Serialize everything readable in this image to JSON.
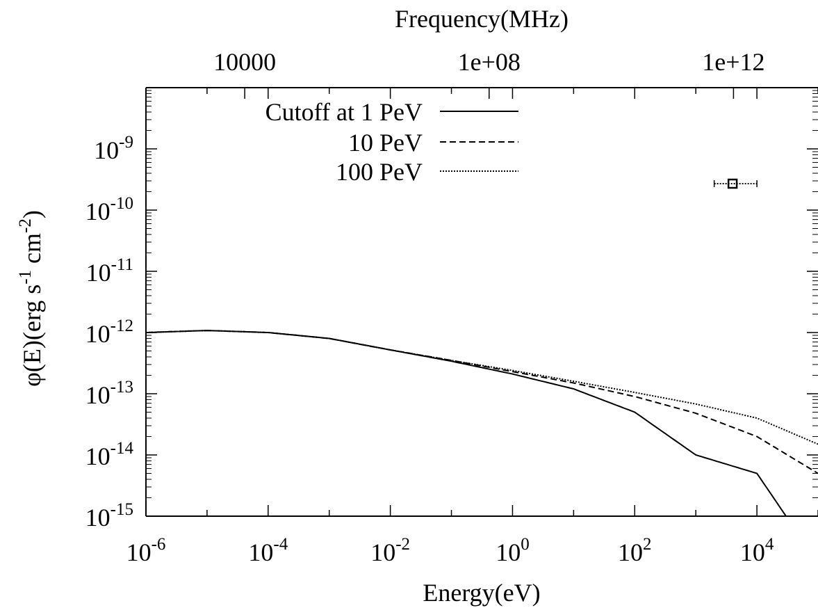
{
  "chart_data": {
    "type": "line",
    "title": "",
    "xlabel": "Energy(eV)",
    "ylabel": "φ(E)(erg s-1 cm-2)",
    "ylabel_parts": {
      "main": "φ(E)(erg s",
      "exp1": "-1",
      "mid": " cm",
      "exp2": "-2",
      "end": ")"
    },
    "x2label": "Frequency(MHz)",
    "x_scale": "log",
    "y_scale": "log",
    "xlim": [
      1e-06,
      100000
    ],
    "ylim": [
      1e-15,
      1e-08
    ],
    "x_ticks": [
      {
        "value": 1e-06,
        "base": "10",
        "exp": "-6"
      },
      {
        "value": 0.0001,
        "base": "10",
        "exp": "-4"
      },
      {
        "value": 0.01,
        "base": "10",
        "exp": "-2"
      },
      {
        "value": 1,
        "base": "10",
        "exp": "0"
      },
      {
        "value": 100,
        "base": "10",
        "exp": "2"
      },
      {
        "value": 10000,
        "base": "10",
        "exp": "4"
      }
    ],
    "y_ticks": [
      {
        "value": 1e-15,
        "base": "10",
        "exp": "-15"
      },
      {
        "value": 1e-14,
        "base": "10",
        "exp": "-14"
      },
      {
        "value": 1e-13,
        "base": "10",
        "exp": "-13"
      },
      {
        "value": 1e-12,
        "base": "10",
        "exp": "-12"
      },
      {
        "value": 1e-11,
        "base": "10",
        "exp": "-11"
      },
      {
        "value": 1e-10,
        "base": "10",
        "exp": "-10"
      },
      {
        "value": 1e-09,
        "base": "10",
        "exp": "-9"
      }
    ],
    "x2_ticks": [
      {
        "label": "10000",
        "energy_eV": 4.14e-05
      },
      {
        "label": "1e+08",
        "energy_eV": 0.414
      },
      {
        "label": "1e+12",
        "energy_eV": 4140
      }
    ],
    "legend_position": "top-left",
    "grid": false,
    "series": [
      {
        "name": "Cutoff at 1 PeV",
        "style": "solid",
        "points": [
          [
            1e-06,
            1e-12
          ],
          [
            1e-05,
            1.08e-12
          ],
          [
            0.0001,
            1e-12
          ],
          [
            0.001,
            8e-13
          ],
          [
            0.01,
            5.2e-13
          ],
          [
            0.1,
            3.4e-13
          ],
          [
            1,
            2.1e-13
          ],
          [
            10,
            1.2e-13
          ],
          [
            100,
            5e-14
          ],
          [
            1000,
            1e-14
          ],
          [
            10000,
            5e-15
          ],
          [
            30000,
            1e-15
          ]
        ]
      },
      {
        "name": "10 PeV",
        "style": "dashed",
        "points": [
          [
            1e-06,
            1e-12
          ],
          [
            1e-05,
            1.08e-12
          ],
          [
            0.0001,
            1e-12
          ],
          [
            0.001,
            8e-13
          ],
          [
            0.01,
            5.2e-13
          ],
          [
            0.1,
            3.5e-13
          ],
          [
            1,
            2.3e-13
          ],
          [
            10,
            1.5e-13
          ],
          [
            100,
            9e-14
          ],
          [
            1000,
            4.8e-14
          ],
          [
            10000,
            2e-14
          ],
          [
            100000,
            5e-15
          ]
        ]
      },
      {
        "name": "100 PeV",
        "style": "dotted",
        "points": [
          [
            1e-06,
            1e-12
          ],
          [
            1e-05,
            1.08e-12
          ],
          [
            0.0001,
            1e-12
          ],
          [
            0.001,
            8e-13
          ],
          [
            0.01,
            5.2e-13
          ],
          [
            0.1,
            3.5e-13
          ],
          [
            1,
            2.4e-13
          ],
          [
            10,
            1.6e-13
          ],
          [
            100,
            1.05e-13
          ],
          [
            1000,
            6.8e-14
          ],
          [
            10000,
            4e-14
          ],
          [
            100000,
            1.5e-14
          ]
        ]
      }
    ],
    "data_point": {
      "x": 4000,
      "y": 2.7e-10,
      "x_err": [
        2000,
        10000
      ]
    },
    "colors": {
      "line": "#000000",
      "background": "#ffffff"
    }
  }
}
